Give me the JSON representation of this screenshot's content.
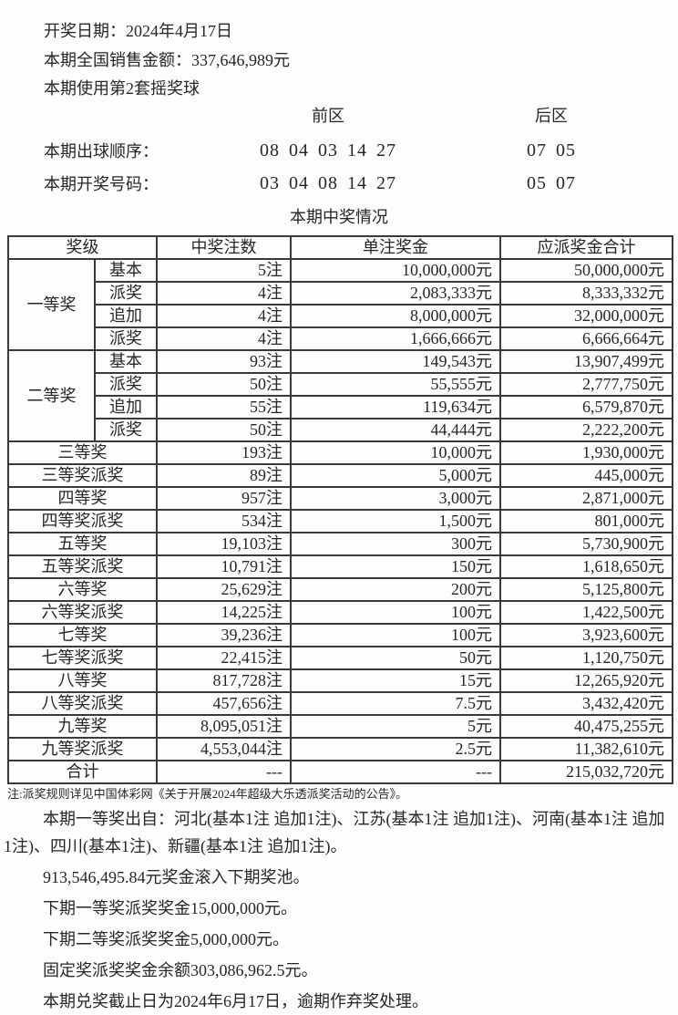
{
  "header": {
    "draw_date": "开奖日期：2024年4月17日",
    "sales_amount": "本期全国销售金额：337,646,989元",
    "ball_set": "本期使用第2套摇奖球",
    "front_zone_label": "前区",
    "back_zone_label": "后区",
    "draw_order_label": "本期出球顺序：",
    "draw_order_front": "08 04 03 14 27",
    "draw_order_back": "07 05",
    "winning_numbers_label": "本期开奖号码：",
    "winning_numbers_front": "03 04 08 14 27",
    "winning_numbers_back": "05 07",
    "table_title": "本期中奖情况"
  },
  "table": {
    "headers": [
      "奖级",
      "中奖注数",
      "单注奖金",
      "应派奖金合计"
    ],
    "groups": [
      {
        "name": "一等奖",
        "rows": [
          {
            "sub": "基本",
            "count": "5注",
            "prize": "10,000,000元",
            "total": "50,000,000元"
          },
          {
            "sub": "派奖",
            "count": "4注",
            "prize": "2,083,333元",
            "total": "8,333,332元"
          },
          {
            "sub": "追加",
            "count": "4注",
            "prize": "8,000,000元",
            "total": "32,000,000元"
          },
          {
            "sub": "派奖",
            "count": "4注",
            "prize": "1,666,666元",
            "total": "6,666,664元"
          }
        ]
      },
      {
        "name": "二等奖",
        "rows": [
          {
            "sub": "基本",
            "count": "93注",
            "prize": "149,543元",
            "total": "13,907,499元"
          },
          {
            "sub": "派奖",
            "count": "50注",
            "prize": "55,555元",
            "total": "2,777,750元"
          },
          {
            "sub": "追加",
            "count": "55注",
            "prize": "119,634元",
            "total": "6,579,870元"
          },
          {
            "sub": "派奖",
            "count": "50注",
            "prize": "44,444元",
            "total": "2,222,200元"
          }
        ]
      }
    ],
    "rows": [
      {
        "level": "三等奖",
        "count": "193注",
        "prize": "10,000元",
        "total": "1,930,000元"
      },
      {
        "level": "三等奖派奖",
        "count": "89注",
        "prize": "5,000元",
        "total": "445,000元"
      },
      {
        "level": "四等奖",
        "count": "957注",
        "prize": "3,000元",
        "total": "2,871,000元"
      },
      {
        "level": "四等奖派奖",
        "count": "534注",
        "prize": "1,500元",
        "total": "801,000元"
      },
      {
        "level": "五等奖",
        "count": "19,103注",
        "prize": "300元",
        "total": "5,730,900元"
      },
      {
        "level": "五等奖派奖",
        "count": "10,791注",
        "prize": "150元",
        "total": "1,618,650元"
      },
      {
        "level": "六等奖",
        "count": "25,629注",
        "prize": "200元",
        "total": "5,125,800元"
      },
      {
        "level": "六等奖派奖",
        "count": "14,225注",
        "prize": "100元",
        "total": "1,422,500元"
      },
      {
        "level": "七等奖",
        "count": "39,236注",
        "prize": "100元",
        "total": "3,923,600元"
      },
      {
        "level": "七等奖派奖",
        "count": "22,415注",
        "prize": "50元",
        "total": "1,120,750元"
      },
      {
        "level": "八等奖",
        "count": "817,728注",
        "prize": "15元",
        "total": "12,265,920元"
      },
      {
        "level": "八等奖派奖",
        "count": "457,656注",
        "prize": "7.5元",
        "total": "3,432,420元"
      },
      {
        "level": "九等奖",
        "count": "8,095,051注",
        "prize": "5元",
        "total": "40,475,255元"
      },
      {
        "level": "九等奖派奖",
        "count": "4,553,044注",
        "prize": "2.5元",
        "total": "11,382,610元"
      }
    ],
    "total_row": {
      "level": "合计",
      "count": "---",
      "prize": "---",
      "total": "215,032,720元"
    }
  },
  "notes": {
    "rule_note": "注:派奖规则详见中国体彩网《关于开展2024年超级大乐透派奖活动的公告》。",
    "paragraphs": [
      "本期一等奖出自：河北(基本1注 追加1注)、江苏(基本1注 追加1注)、河南(基本1注 追加1注)、四川(基本1注)、新疆(基本1注 追加1注)。",
      "913,546,495.84元奖金滚入下期奖池。",
      "下期一等奖派奖奖金15,000,000元。",
      "下期二等奖派奖奖金5,000,000元。",
      "固定奖派奖奖金余额303,086,962.5元。",
      "本期兑奖截止日为2024年6月17日，逾期作弃奖处理。"
    ]
  },
  "colors": {
    "text": "#262626",
    "table_border": "#3a3a3a",
    "page_background": "#fdfdfd"
  }
}
